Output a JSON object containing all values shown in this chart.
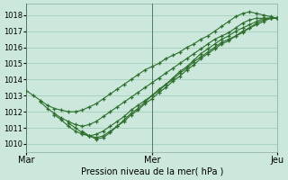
{
  "title": "Pression niveau de la mer( hPa )",
  "background_color": "#cce8dc",
  "grid_color": "#99ccb3",
  "line_color": "#2d6e2d",
  "marker_color": "#2d6e2d",
  "ylim": [
    1009.5,
    1018.7
  ],
  "yticks": [
    1010,
    1011,
    1012,
    1013,
    1014,
    1015,
    1016,
    1017,
    1018
  ],
  "xtick_labels": [
    "Mar",
    "Mer",
    "Jeu"
  ],
  "xtick_positions": [
    0,
    36,
    72
  ],
  "vline_positions": [
    0,
    36,
    72
  ],
  "total_x": 72,
  "lines": [
    {
      "x": [
        0,
        2,
        4,
        6,
        8,
        10,
        12,
        14,
        16,
        18,
        20,
        22,
        24,
        26,
        28,
        30,
        32,
        34,
        36,
        38,
        40,
        42,
        44,
        46,
        48,
        50,
        52,
        54,
        56,
        58,
        60,
        62,
        64,
        66,
        68,
        70,
        72
      ],
      "y": [
        1013.3,
        1013.0,
        1012.7,
        1012.4,
        1012.2,
        1012.1,
        1012.0,
        1012.0,
        1012.1,
        1012.3,
        1012.5,
        1012.8,
        1013.1,
        1013.4,
        1013.7,
        1014.0,
        1014.3,
        1014.6,
        1014.8,
        1015.0,
        1015.3,
        1015.5,
        1015.7,
        1016.0,
        1016.2,
        1016.5,
        1016.7,
        1017.0,
        1017.3,
        1017.6,
        1017.9,
        1018.1,
        1018.2,
        1018.1,
        1018.0,
        1017.9,
        1017.8
      ]
    },
    {
      "x": [
        4,
        6,
        8,
        10,
        12,
        14,
        16,
        18,
        20,
        22,
        24,
        26,
        28,
        30,
        32,
        34,
        36,
        38,
        40,
        42,
        44,
        46,
        48,
        50,
        52,
        54,
        56,
        58,
        60,
        62,
        64,
        66,
        68,
        70,
        72
      ],
      "y": [
        1012.6,
        1012.2,
        1011.9,
        1011.6,
        1011.4,
        1011.2,
        1011.1,
        1011.2,
        1011.4,
        1011.7,
        1012.0,
        1012.3,
        1012.6,
        1012.9,
        1013.2,
        1013.5,
        1013.8,
        1014.1,
        1014.4,
        1014.7,
        1015.0,
        1015.3,
        1015.6,
        1015.9,
        1016.2,
        1016.5,
        1016.7,
        1016.9,
        1017.2,
        1017.5,
        1017.7,
        1017.8,
        1017.8,
        1017.8,
        1017.8
      ]
    },
    {
      "x": [
        8,
        10,
        12,
        14,
        16,
        18,
        20,
        22,
        24,
        26,
        28,
        30,
        32,
        34,
        36,
        38,
        40,
        42,
        44,
        46,
        48,
        50,
        52,
        54,
        56,
        58,
        60,
        62,
        64,
        66,
        68,
        70,
        72
      ],
      "y": [
        1011.8,
        1011.5,
        1011.1,
        1010.8,
        1010.6,
        1010.5,
        1010.6,
        1010.8,
        1011.1,
        1011.4,
        1011.7,
        1012.1,
        1012.4,
        1012.7,
        1013.0,
        1013.4,
        1013.7,
        1014.0,
        1014.4,
        1014.7,
        1015.1,
        1015.4,
        1015.7,
        1016.0,
        1016.3,
        1016.5,
        1016.7,
        1017.0,
        1017.2,
        1017.5,
        1017.7,
        1017.8,
        1017.8
      ]
    },
    {
      "x": [
        12,
        14,
        16,
        18,
        20,
        22,
        24,
        26,
        28,
        30,
        32,
        34,
        36,
        38,
        40,
        42,
        44,
        46,
        48,
        50,
        52,
        54,
        56,
        58,
        60,
        62,
        64,
        66,
        68,
        70,
        72
      ],
      "y": [
        1011.3,
        1011.0,
        1010.7,
        1010.5,
        1010.4,
        1010.5,
        1010.8,
        1011.1,
        1011.4,
        1011.8,
        1012.1,
        1012.5,
        1012.8,
        1013.2,
        1013.5,
        1013.9,
        1014.2,
        1014.6,
        1014.9,
        1015.3,
        1015.6,
        1015.9,
        1016.2,
        1016.4,
        1016.7,
        1016.9,
        1017.2,
        1017.4,
        1017.6,
        1017.8,
        1017.8
      ]
    },
    {
      "x": [
        16,
        18,
        20,
        22,
        24,
        26,
        28,
        30,
        32,
        34,
        36,
        38,
        40,
        42,
        44,
        46,
        48,
        50,
        52,
        54,
        56,
        58,
        60,
        62,
        64,
        66,
        68,
        70,
        72
      ],
      "y": [
        1010.8,
        1010.5,
        1010.3,
        1010.4,
        1010.7,
        1011.1,
        1011.5,
        1011.9,
        1012.2,
        1012.6,
        1013.0,
        1013.3,
        1013.7,
        1014.1,
        1014.5,
        1014.8,
        1015.2,
        1015.6,
        1015.9,
        1016.2,
        1016.5,
        1016.7,
        1017.0,
        1017.2,
        1017.4,
        1017.6,
        1017.8,
        1017.8,
        1017.8
      ]
    }
  ]
}
